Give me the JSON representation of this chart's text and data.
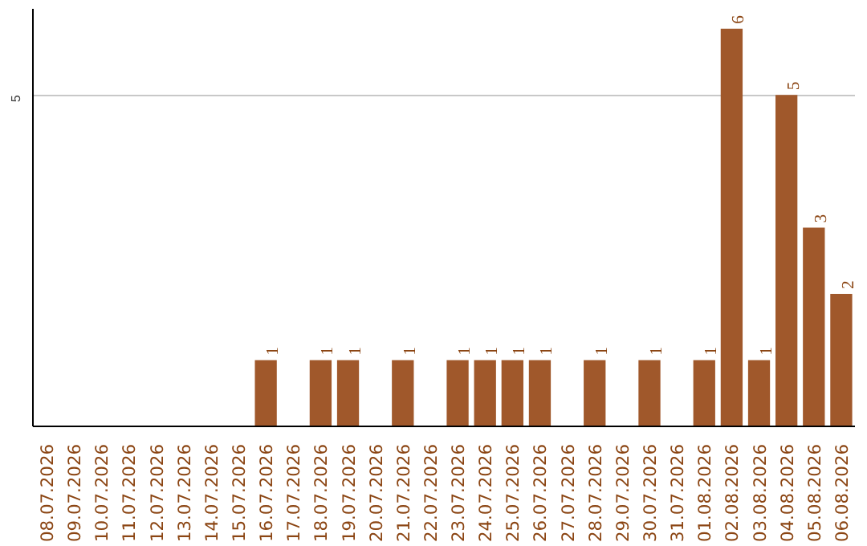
{
  "chart_data": {
    "type": "bar",
    "categories": [
      "08.07.2026",
      "09.07.2026",
      "10.07.2026",
      "11.07.2026",
      "12.07.2026",
      "13.07.2026",
      "14.07.2026",
      "15.07.2026",
      "16.07.2026",
      "17.07.2026",
      "18.07.2026",
      "19.07.2026",
      "20.07.2026",
      "21.07.2026",
      "22.07.2026",
      "23.07.2026",
      "24.07.2026",
      "25.07.2026",
      "26.07.2026",
      "27.07.2026",
      "28.07.2026",
      "29.07.2026",
      "30.07.2026",
      "31.07.2026",
      "01.08.2026",
      "02.08.2026",
      "03.08.2026",
      "04.08.2026",
      "05.08.2026",
      "06.08.2026"
    ],
    "values": [
      0,
      0,
      0,
      0,
      0,
      0,
      0,
      0,
      1,
      0,
      1,
      1,
      0,
      1,
      0,
      1,
      1,
      1,
      1,
      0,
      1,
      0,
      1,
      0,
      1,
      6,
      1,
      5,
      3,
      2
    ],
    "value_labels": [
      null,
      null,
      null,
      null,
      null,
      null,
      null,
      null,
      "1",
      null,
      "1",
      "1",
      null,
      "1",
      null,
      "1",
      "1",
      "1",
      "1",
      null,
      "1",
      null,
      "1",
      null,
      "1",
      "6",
      "1",
      "5",
      "3",
      "2"
    ],
    "color": "#a0582b",
    "ylim": [
      0,
      6.3
    ],
    "yticks": [
      5
    ],
    "grid": "y"
  }
}
